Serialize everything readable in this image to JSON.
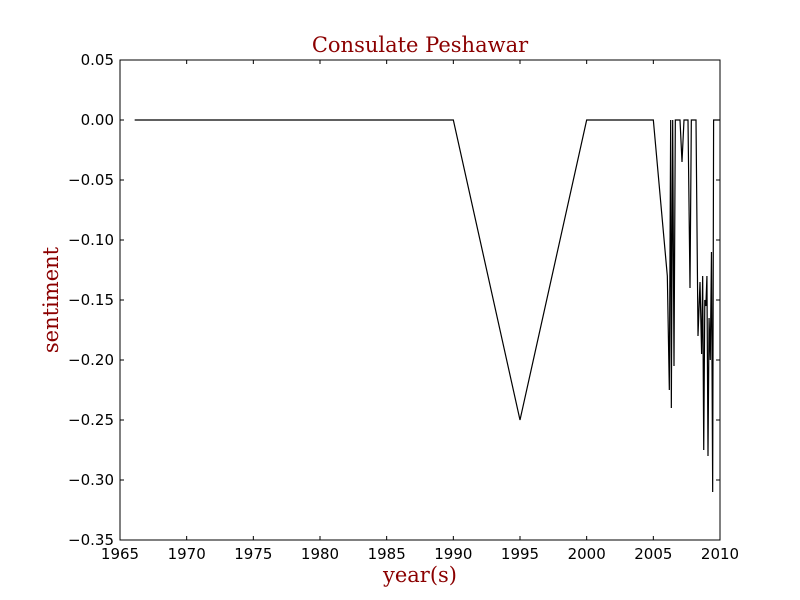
{
  "chart_data": {
    "type": "line",
    "title": "Consulate Peshawar",
    "xlabel": "year(s)",
    "ylabel": "sentiment",
    "xlim": [
      1965,
      2010
    ],
    "ylim": [
      -0.35,
      0.05
    ],
    "xticks": [
      1965,
      1970,
      1975,
      1980,
      1985,
      1990,
      1995,
      2000,
      2005,
      2010
    ],
    "yticks": [
      0.05,
      0.0,
      -0.05,
      -0.1,
      -0.15,
      -0.2,
      -0.25,
      -0.3,
      -0.35
    ],
    "xtick_labels": [
      "1965",
      "1970",
      "1975",
      "1980",
      "1985",
      "1990",
      "1995",
      "2000",
      "2005",
      "2010"
    ],
    "ytick_labels": [
      "0.05",
      "0.00",
      "−0.05",
      "−0.10",
      "−0.15",
      "−0.20",
      "−0.25",
      "−0.30",
      "−0.35"
    ],
    "grid": false,
    "legend": null,
    "colors": {
      "line": "#000000",
      "title": "#8b0000",
      "axis_title": "#8b0000"
    },
    "series": [
      {
        "x": [
          1966.1,
          1990.0,
          1995.0,
          2000.0,
          2005.0,
          2006.05,
          2006.2,
          2006.3,
          2006.35,
          2006.45,
          2006.55,
          2006.65,
          2006.75,
          2006.85,
          2007.0,
          2007.15,
          2007.3,
          2007.45,
          2007.6,
          2007.75,
          2007.85,
          2007.95,
          2008.05,
          2008.2,
          2008.35,
          2008.5,
          2008.62,
          2008.7,
          2008.78,
          2008.86,
          2008.94,
          2009.02,
          2009.1,
          2009.18,
          2009.27,
          2009.36,
          2009.45,
          2009.52,
          2009.6,
          2009.68,
          2009.76,
          2009.84,
          2009.92,
          2009.98
        ],
        "y": [
          0.0,
          0.0,
          -0.25,
          0.0,
          0.0,
          -0.13,
          -0.225,
          0.0,
          -0.24,
          0.0,
          -0.205,
          0.0,
          0.0,
          0.0,
          0.0,
          -0.035,
          0.0,
          0.0,
          0.0,
          -0.14,
          0.0,
          0.0,
          0.0,
          0.0,
          -0.18,
          -0.135,
          -0.195,
          -0.13,
          -0.275,
          -0.15,
          -0.155,
          -0.13,
          -0.28,
          -0.165,
          -0.2,
          -0.11,
          -0.31,
          0.0,
          -0.0,
          -0.0,
          -0.0,
          -0.0,
          -0.0,
          0.0
        ]
      }
    ]
  }
}
